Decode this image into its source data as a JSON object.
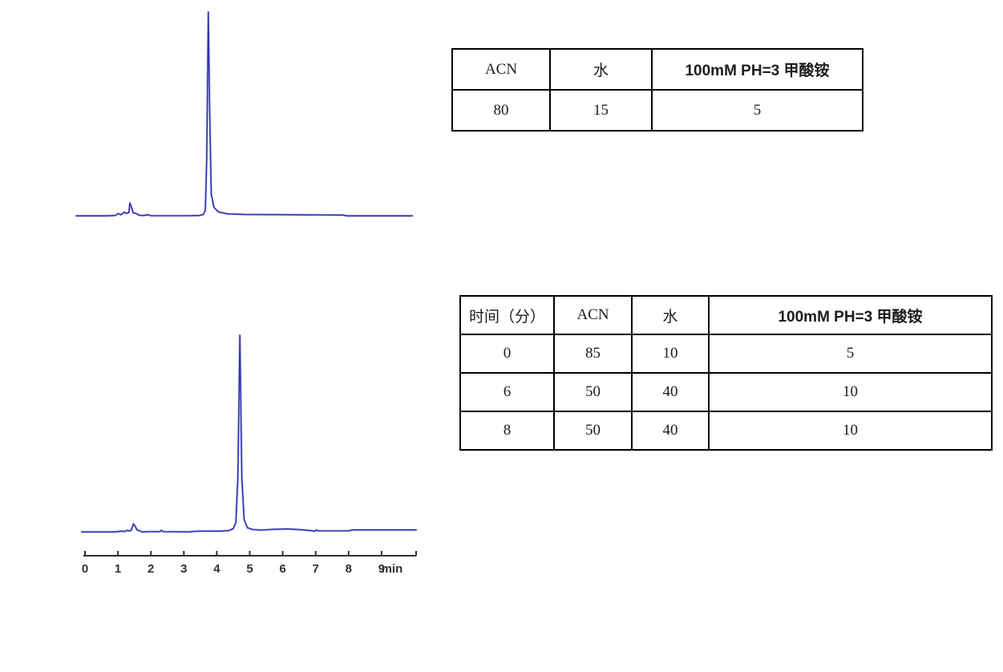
{
  "colors": {
    "trace": "#3030ae",
    "trace_halo": "#9a9ade",
    "axis": "#303030",
    "table_border": "#000000",
    "background": "#ffffff"
  },
  "tables": [
    {
      "name": "isocratic-mobile-phase",
      "headers": [
        "ACN",
        "水",
        "100mM PH=3 甲酸铵"
      ],
      "rows": [
        [
          "80",
          "15",
          "5"
        ]
      ]
    },
    {
      "name": "gradient-program",
      "headers": [
        "时间（分）",
        "ACN",
        "水",
        "100mM PH=3 甲酸铵"
      ],
      "rows": [
        [
          "0",
          "85",
          "10",
          "5"
        ],
        [
          "6",
          "50",
          "40",
          "10"
        ],
        [
          "8",
          "50",
          "40",
          "10"
        ]
      ]
    }
  ],
  "chart_data": [
    {
      "type": "line",
      "title": "",
      "description": "HPLC chromatogram (isocratic run), blue trace, no axes shown",
      "x_unit": "min",
      "axis_visible": false,
      "x_range": [
        0,
        10.2
      ],
      "y_range": [
        0,
        100
      ],
      "main_peak_min": 4.0,
      "minor_cluster_min": 1.6,
      "legend": "none",
      "grid": false,
      "points": [
        [
          0,
          0.3
        ],
        [
          0.9,
          0.3
        ],
        [
          1.18,
          0.5
        ],
        [
          1.28,
          1.4
        ],
        [
          1.36,
          0.9
        ],
        [
          1.46,
          2.1
        ],
        [
          1.53,
          1.5
        ],
        [
          1.6,
          2.0
        ],
        [
          1.63,
          6.6
        ],
        [
          1.67,
          5.0
        ],
        [
          1.73,
          1.8
        ],
        [
          1.82,
          1.5
        ],
        [
          1.92,
          0.6
        ],
        [
          2.05,
          0.5
        ],
        [
          2.18,
          0.9
        ],
        [
          2.26,
          0.4
        ],
        [
          2.45,
          0.4
        ],
        [
          3.4,
          0.4
        ],
        [
          3.75,
          0.5
        ],
        [
          3.86,
          1.0
        ],
        [
          3.92,
          3.0
        ],
        [
          3.96,
          28
        ],
        [
          4.01,
          100
        ],
        [
          4.05,
          52
        ],
        [
          4.1,
          11
        ],
        [
          4.18,
          4.5
        ],
        [
          4.32,
          2.2
        ],
        [
          4.6,
          1.3
        ],
        [
          5.1,
          1.0
        ],
        [
          6.2,
          0.9
        ],
        [
          7.4,
          0.8
        ],
        [
          8.1,
          0.7
        ],
        [
          8.22,
          0.3
        ],
        [
          9.2,
          0.3
        ],
        [
          10.2,
          0.3
        ]
      ]
    },
    {
      "type": "line",
      "title": "",
      "description": "HPLC chromatogram (gradient run), blue trace, x-axis 0-9 min",
      "x_unit": "min",
      "axis_visible": true,
      "x_ticks": [
        0,
        1,
        2,
        3,
        4,
        5,
        6,
        7,
        8,
        9
      ],
      "x_axis_label": "min",
      "x_range": [
        0,
        10
      ],
      "y_range": [
        0,
        100
      ],
      "main_peak_min": 4.7,
      "minor_cluster_min": 1.5,
      "legend": "none",
      "grid": false,
      "points": [
        [
          -0.1,
          0.3
        ],
        [
          0.9,
          0.3
        ],
        [
          1.12,
          0.7
        ],
        [
          1.2,
          0.5
        ],
        [
          1.28,
          1.1
        ],
        [
          1.34,
          0.8
        ],
        [
          1.4,
          1.0
        ],
        [
          1.47,
          4.3
        ],
        [
          1.52,
          3.2
        ],
        [
          1.58,
          1.3
        ],
        [
          1.66,
          0.9
        ],
        [
          1.73,
          0.3
        ],
        [
          1.95,
          0.4
        ],
        [
          2.27,
          0.4
        ],
        [
          2.32,
          1.1
        ],
        [
          2.37,
          0.4
        ],
        [
          3.15,
          0.3
        ],
        [
          3.35,
          0.6
        ],
        [
          3.7,
          0.7
        ],
        [
          4.15,
          0.7
        ],
        [
          4.38,
          1.0
        ],
        [
          4.5,
          2.0
        ],
        [
          4.58,
          5.0
        ],
        [
          4.64,
          28
        ],
        [
          4.7,
          100
        ],
        [
          4.76,
          28
        ],
        [
          4.83,
          6.5
        ],
        [
          4.93,
          2.4
        ],
        [
          5.08,
          1.5
        ],
        [
          5.35,
          1.2
        ],
        [
          5.75,
          1.6
        ],
        [
          6.15,
          1.8
        ],
        [
          6.55,
          1.4
        ],
        [
          6.88,
          0.9
        ],
        [
          6.97,
          0.6
        ],
        [
          7.02,
          1.3
        ],
        [
          7.08,
          0.8
        ],
        [
          7.7,
          0.8
        ],
        [
          8.02,
          0.8
        ],
        [
          8.1,
          1.3
        ],
        [
          9.1,
          1.3
        ],
        [
          10.05,
          1.3
        ]
      ]
    }
  ]
}
